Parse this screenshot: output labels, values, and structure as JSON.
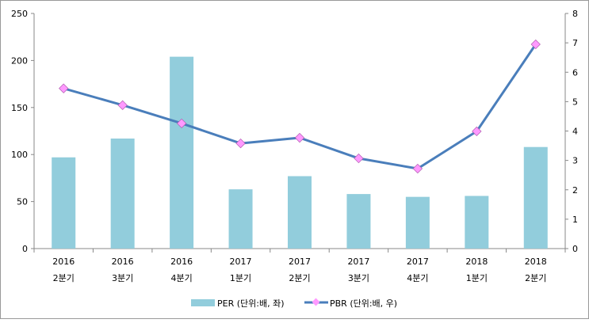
{
  "chart_data": {
    "type": "bar+line",
    "categories": [
      [
        "2016",
        "2분기"
      ],
      [
        "2016",
        "3분기"
      ],
      [
        "2016",
        "4분기"
      ],
      [
        "2017",
        "1분기"
      ],
      [
        "2017",
        "2분기"
      ],
      [
        "2017",
        "3분기"
      ],
      [
        "2017",
        "4분기"
      ],
      [
        "2018",
        "1분기"
      ],
      [
        "2018",
        "2분기"
      ]
    ],
    "series": [
      {
        "name": "PER (단위:배, 좌)",
        "type": "bar",
        "axis": "left",
        "color": "#92CDDC",
        "values": [
          97,
          117,
          204,
          63,
          77,
          58,
          55,
          56,
          108
        ]
      },
      {
        "name": "PBR (단위:배, 우)",
        "type": "line",
        "axis": "right",
        "color": "#4A7EBB",
        "marker_color": "#FF99FF",
        "values": [
          5.45,
          4.88,
          4.26,
          3.58,
          3.77,
          3.07,
          2.72,
          3.99,
          6.95
        ]
      }
    ],
    "left_axis": {
      "ylim": [
        0,
        250
      ],
      "ticks": [
        "0",
        "50",
        "100",
        "150",
        "200",
        "250"
      ]
    },
    "right_axis": {
      "ylim": [
        0,
        8
      ],
      "ticks": [
        "0",
        "1",
        "2",
        "3",
        "4",
        "5",
        "6",
        "7",
        "8"
      ]
    },
    "legend": "bottom"
  }
}
